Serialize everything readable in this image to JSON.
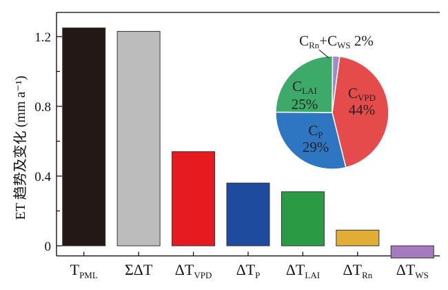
{
  "chart_data": [
    {
      "type": "bar",
      "ylabel": "ET 趋势及变化 (mm a⁻¹)",
      "ylim": [
        -0.05,
        1.3
      ],
      "yticks": [
        {
          "value": 0,
          "label": "0"
        },
        {
          "value": 0.4,
          "label": "0.4"
        },
        {
          "value": 0.8,
          "label": "0.8"
        },
        {
          "value": 1.2,
          "label": "1.2"
        }
      ],
      "categories": [
        {
          "main": "T",
          "sub": "PML"
        },
        {
          "main": "ΣΔT",
          "sub": ""
        },
        {
          "main": "ΔT",
          "sub": "VPD"
        },
        {
          "main": "ΔT",
          "sub": "P"
        },
        {
          "main": "ΔT",
          "sub": "LAI"
        },
        {
          "main": "ΔT",
          "sub": "Rn"
        },
        {
          "main": "ΔT",
          "sub": "WS"
        }
      ],
      "values": [
        1.25,
        1.23,
        0.54,
        0.36,
        0.31,
        0.09,
        -0.07
      ],
      "colors": [
        "#231815",
        "#bdbcbc",
        "#e51b20",
        "#1f4b9e",
        "#2a9a45",
        "#e2ad34",
        "#a47bbf"
      ],
      "grid": false
    },
    {
      "type": "pie",
      "slices": [
        {
          "main": "C",
          "sub": "VPD",
          "pct_label": "44%",
          "value": 44,
          "color": "#e54b4b"
        },
        {
          "main": "C",
          "sub": "P",
          "pct_label": "29%",
          "value": 29,
          "color": "#2e75c2"
        },
        {
          "main": "C",
          "sub": "LAI",
          "pct_label": "25%",
          "value": 25,
          "color": "#3daa6a"
        },
        {
          "main": "C",
          "sub": "Rn",
          "main2": "+C",
          "sub2": "WS",
          "pct_label": "2%",
          "value": 2,
          "color": "#a38bc7"
        }
      ]
    }
  ]
}
